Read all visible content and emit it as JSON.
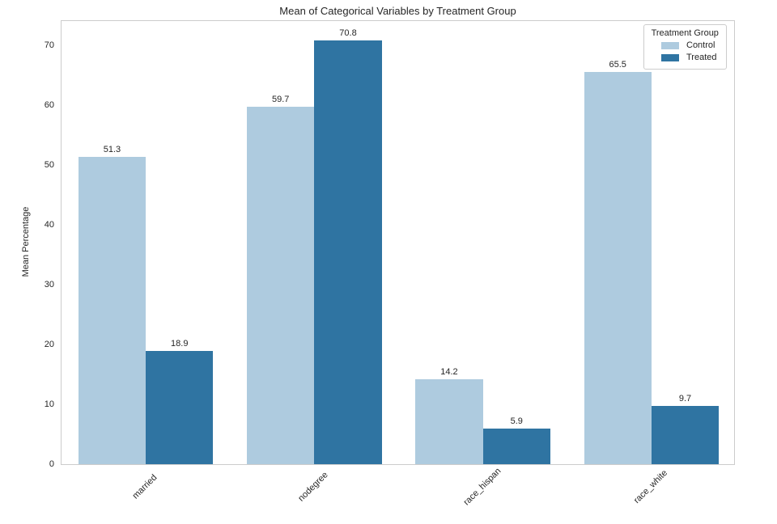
{
  "chart_data": {
    "type": "bar",
    "title": "Mean of Categorical Variables by Treatment Group",
    "xlabel": "",
    "ylabel": "Mean Percentage",
    "categories": [
      "married",
      "nodegree",
      "race_hispan",
      "race_white"
    ],
    "series": [
      {
        "name": "Control",
        "color": "#aecbdf",
        "values": [
          51.3,
          59.7,
          14.2,
          65.5
        ]
      },
      {
        "name": "Treated",
        "color": "#2f74a2",
        "values": [
          18.9,
          70.8,
          5.9,
          9.7
        ]
      }
    ],
    "yticks": [
      0,
      10,
      20,
      30,
      40,
      50,
      60,
      70
    ],
    "ylim": [
      0,
      74.3
    ],
    "grid": false,
    "value_labels": true,
    "x_tick_rotation": 45,
    "legend_title": "Treatment Group",
    "legend_position": "upper right",
    "frame_color": "#cccccc",
    "background_color": "#ffffff",
    "text_color": "#262626"
  }
}
